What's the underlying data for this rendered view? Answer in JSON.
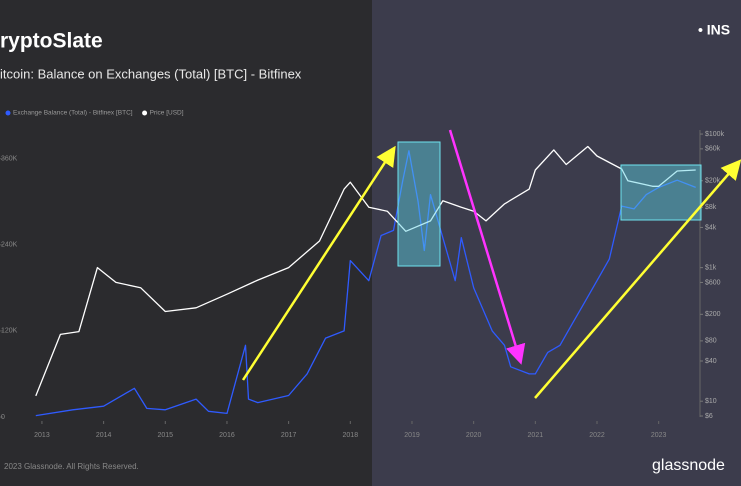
{
  "brand": "ryptoSlate",
  "corner_label": "• INS",
  "footer": "2023 Glassnode. All Rights Reserved.",
  "logo": "glassnode",
  "chart_data": {
    "type": "line",
    "title": "itcoin: Balance on Exchanges (Total) [BTC] - Bitfinex",
    "xlim": [
      2012.32,
      2023.67
    ],
    "xticks": [
      2013,
      2014,
      2015,
      2016,
      2017,
      2018,
      2019,
      2020,
      2021,
      2022,
      2023
    ],
    "ylim": [
      0,
      400000
    ],
    "yticks": [
      {
        "value": 0,
        "label": "0"
      },
      {
        "value": 120000,
        "label": "120K"
      },
      {
        "value": 240000,
        "label": "240K"
      },
      {
        "value": 360000,
        "label": "360K"
      }
    ],
    "y2lim": [
      5.8,
      115000
    ],
    "y2log": true,
    "y2ticks": [
      {
        "value": 6,
        "label": "$6"
      },
      {
        "value": 10,
        "label": "$10"
      },
      {
        "value": 40,
        "label": "$40"
      },
      {
        "value": 80,
        "label": "$80"
      },
      {
        "value": 200,
        "label": "$200"
      },
      {
        "value": 600,
        "label": "$600"
      },
      {
        "value": 1000,
        "label": "$1k"
      },
      {
        "value": 4000,
        "label": "$4k"
      },
      {
        "value": 8000,
        "label": "$8k"
      },
      {
        "value": 20000,
        "label": "$20k"
      },
      {
        "value": 60000,
        "label": "$60k"
      },
      {
        "value": 100000,
        "label": "$100k"
      }
    ],
    "series": [
      {
        "name": "Exchange Balance (Total) - Bitfinex [BTC]",
        "color": "#2f5bff",
        "x": [
          2012.9,
          2013.5,
          2014.0,
          2014.5,
          2014.7,
          2015.0,
          2015.5,
          2015.7,
          2016.0,
          2016.3,
          2016.35,
          2016.5,
          2017.0,
          2017.3,
          2017.6,
          2017.9,
          2018.0,
          2018.3,
          2018.5,
          2018.7,
          2018.85,
          2018.95,
          2019.1,
          2019.2,
          2019.3,
          2019.5,
          2019.7,
          2019.8,
          2020.0,
          2020.3,
          2020.5,
          2020.6,
          2020.9,
          2021.0,
          2021.2,
          2021.4,
          2021.6,
          2021.8,
          2022.0,
          2022.2,
          2022.4,
          2022.6,
          2022.8,
          2023.0,
          2023.3,
          2023.6
        ],
        "values": [
          2000,
          10000,
          15000,
          40000,
          12000,
          10000,
          25000,
          8000,
          5000,
          100000,
          25000,
          20000,
          30000,
          60000,
          110000,
          120000,
          218000,
          190000,
          253000,
          260000,
          329000,
          371000,
          300000,
          232000,
          310000,
          250000,
          190000,
          250000,
          180000,
          120000,
          100000,
          70000,
          60000,
          60000,
          90000,
          100000,
          130000,
          160000,
          190000,
          220000,
          294000,
          290000,
          310000,
          320000,
          330000,
          320000
        ]
      },
      {
        "name": "Price [USD]",
        "color": "#ffffff",
        "axis": "y2",
        "x": [
          2012.9,
          2013.3,
          2013.6,
          2013.9,
          2014.2,
          2014.6,
          2015.0,
          2015.5,
          2016.0,
          2016.5,
          2017.0,
          2017.5,
          2017.9,
          2018.0,
          2018.3,
          2018.6,
          2018.9,
          2019.3,
          2019.5,
          2019.8,
          2020.0,
          2020.2,
          2020.5,
          2020.9,
          2021.0,
          2021.3,
          2021.5,
          2021.85,
          2022.0,
          2022.4,
          2022.5,
          2022.9,
          2023.0,
          2023.3,
          2023.6
        ],
        "values": [
          12,
          100,
          110,
          1000,
          600,
          500,
          220,
          250,
          400,
          650,
          1000,
          2500,
          15000,
          19000,
          8000,
          7000,
          3500,
          5000,
          10000,
          8000,
          7000,
          5000,
          9000,
          15000,
          29000,
          58000,
          35000,
          65000,
          47000,
          30000,
          20000,
          16500,
          16500,
          28000,
          29000
        ]
      }
    ]
  }
}
